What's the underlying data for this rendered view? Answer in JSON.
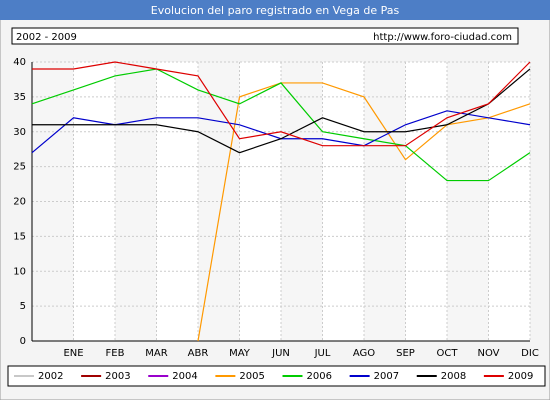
{
  "chart_data": {
    "type": "line",
    "title": "Evolucion del paro registrado en Vega de Pas",
    "subtitle": "2002 - 2009",
    "source": "http://www.foro-ciudad.com",
    "categories": [
      null,
      "ENE",
      "FEB",
      "MAR",
      "ABR",
      "MAY",
      "JUN",
      "JUL",
      "AGO",
      "SEP",
      "OCT",
      "NOV",
      "DIC"
    ],
    "ylim": [
      0,
      40
    ],
    "yticks": [
      0,
      5,
      10,
      15,
      20,
      25,
      30,
      35,
      40
    ],
    "grid": true,
    "series": [
      {
        "name": "2002",
        "color": "#c8c8c8",
        "values": [
          null,
          null,
          null,
          null,
          null,
          null,
          null,
          null,
          null,
          null,
          null,
          null,
          null
        ]
      },
      {
        "name": "2003",
        "color": "#a00000",
        "values": [
          null,
          null,
          null,
          null,
          null,
          null,
          null,
          null,
          null,
          null,
          null,
          null,
          null
        ]
      },
      {
        "name": "2004",
        "color": "#9900cc",
        "values": [
          null,
          null,
          null,
          null,
          null,
          null,
          null,
          null,
          null,
          null,
          null,
          null,
          null
        ]
      },
      {
        "name": "2005",
        "color": "#ff9900",
        "values": [
          null,
          null,
          null,
          null,
          0,
          35,
          37,
          37,
          35,
          26,
          31,
          32,
          34
        ]
      },
      {
        "name": "2006",
        "color": "#00cc00",
        "values": [
          34,
          36,
          38,
          39,
          36,
          34,
          37,
          30,
          29,
          28,
          23,
          23,
          27
        ]
      },
      {
        "name": "2007",
        "color": "#0000cc",
        "values": [
          27,
          32,
          31,
          32,
          32,
          31,
          29,
          29,
          28,
          31,
          33,
          32,
          31
        ]
      },
      {
        "name": "2008",
        "color": "#000000",
        "values": [
          31,
          31,
          31,
          31,
          30,
          27,
          29,
          32,
          30,
          30,
          31,
          34,
          39
        ]
      },
      {
        "name": "2009",
        "color": "#dd0000",
        "values": [
          39,
          39,
          40,
          39,
          38,
          29,
          30,
          28,
          28,
          28,
          32,
          34,
          40
        ]
      }
    ]
  }
}
